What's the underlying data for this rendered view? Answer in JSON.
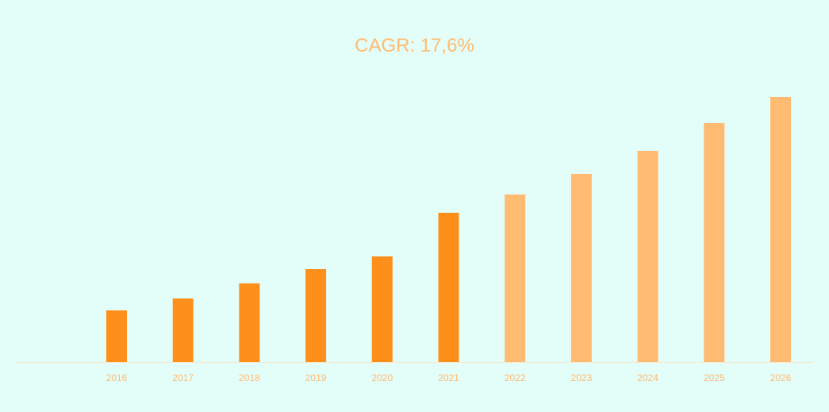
{
  "chart_data": {
    "type": "bar",
    "title": "CAGR: 17,6%",
    "categories": [
      "2016",
      "2017",
      "2018",
      "2019",
      "2020",
      "2021",
      "2022",
      "2023",
      "2024",
      "2025",
      "2026"
    ],
    "values": [
      65,
      80,
      99,
      117,
      133,
      188,
      211,
      237,
      266,
      301,
      334
    ],
    "series_kind": [
      "historical",
      "historical",
      "historical",
      "historical",
      "historical",
      "historical",
      "forecast",
      "forecast",
      "forecast",
      "forecast",
      "forecast"
    ],
    "colors": {
      "historical": "#ff8f1b",
      "forecast": "#ffbb72",
      "text": "#ffbb72"
    },
    "ylim": [
      0,
      340
    ],
    "grid": false,
    "legend": "none"
  }
}
